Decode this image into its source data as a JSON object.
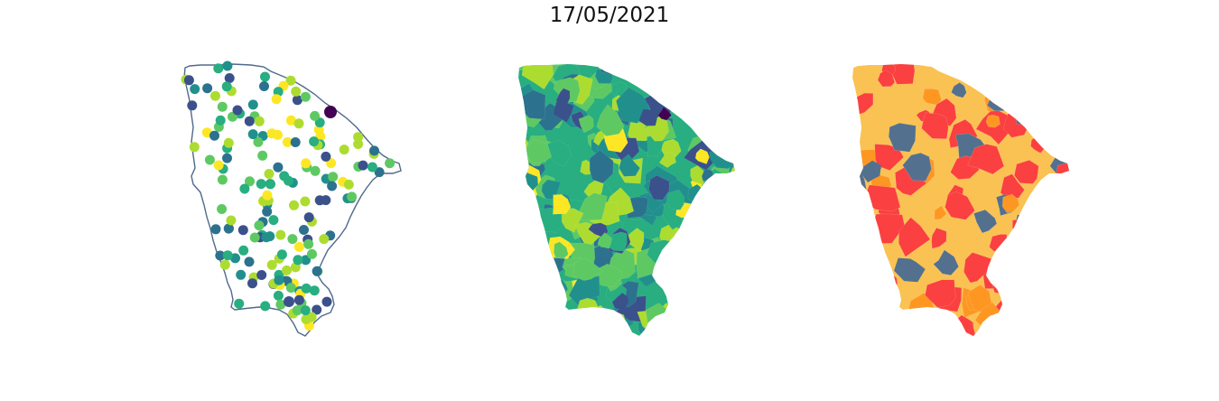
{
  "figure": {
    "title": "17/05/2021"
  },
  "colors": {
    "background": "#ffffff",
    "outline": "#4f6a8a",
    "viridis": [
      "#440154",
      "#3b518b",
      "#2c728e",
      "#21908d",
      "#28ae80",
      "#5ec962",
      "#addc30",
      "#fde725"
    ],
    "risk": [
      "#fac252",
      "#fe9722",
      "#fa4040",
      "#53718e"
    ]
  },
  "panels": [
    {
      "id": "stations",
      "kind": "points-on-outline"
    },
    {
      "id": "interpolated",
      "kind": "choropleth-viridis"
    },
    {
      "id": "classified",
      "kind": "choropleth-categorical"
    }
  ]
}
